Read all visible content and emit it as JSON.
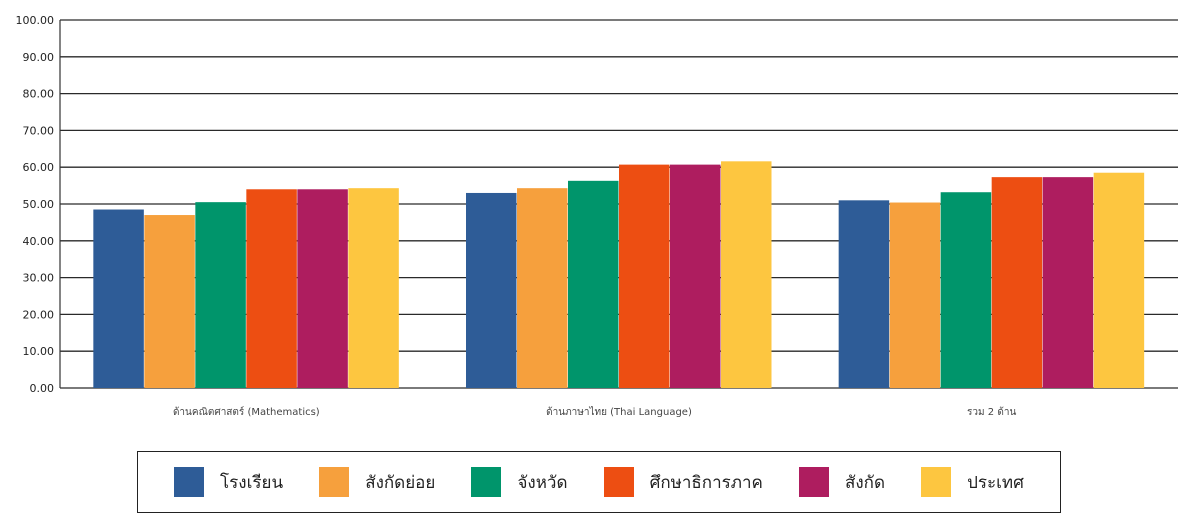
{
  "chart_data": {
    "type": "bar",
    "categories": [
      "ด้านคณิตศาสตร์ (Mathematics)",
      "ด้านภาษาไทย (Thai Language)",
      "รวม 2 ด้าน"
    ],
    "series": [
      {
        "name": "โรงเรียน",
        "color": "#2E5C97",
        "values": [
          48.5,
          53.0,
          51.0
        ]
      },
      {
        "name": "สังกัดย่อย",
        "color": "#F6A03D",
        "values": [
          47.0,
          54.3,
          50.4
        ]
      },
      {
        "name": "จังหวัด",
        "color": "#00956B",
        "values": [
          50.5,
          56.3,
          53.2
        ]
      },
      {
        "name": "ศึกษาธิการภาค",
        "color": "#ED4E12",
        "values": [
          54.0,
          60.7,
          57.3
        ]
      },
      {
        "name": "สังกัด",
        "color": "#AE1D5F",
        "values": [
          54.0,
          60.7,
          57.3
        ]
      },
      {
        "name": "ประเทศ",
        "color": "#FDC640",
        "values": [
          54.3,
          61.6,
          58.5
        ]
      }
    ],
    "yticks": [
      "0.00",
      "10.00",
      "20.00",
      "30.00",
      "40.00",
      "50.00",
      "60.00",
      "70.00",
      "80.00",
      "90.00",
      "100.00"
    ],
    "ylim": [
      0,
      100
    ],
    "grid": true,
    "legend_position": "bottom"
  }
}
